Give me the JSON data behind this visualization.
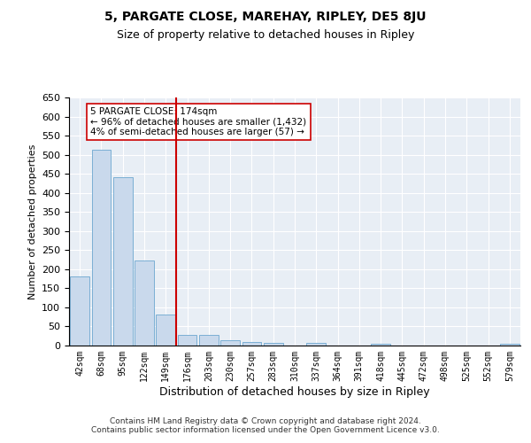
{
  "title": "5, PARGATE CLOSE, MAREHAY, RIPLEY, DE5 8JU",
  "subtitle": "Size of property relative to detached houses in Ripley",
  "xlabel": "Distribution of detached houses by size in Ripley",
  "ylabel": "Number of detached properties",
  "bar_color": "#c9d9ec",
  "bar_edge_color": "#7bafd4",
  "background_color": "#e8eef5",
  "grid_color": "#ffffff",
  "categories": [
    "42sqm",
    "68sqm",
    "95sqm",
    "122sqm",
    "149sqm",
    "176sqm",
    "203sqm",
    "230sqm",
    "257sqm",
    "283sqm",
    "310sqm",
    "337sqm",
    "364sqm",
    "391sqm",
    "418sqm",
    "445sqm",
    "472sqm",
    "498sqm",
    "525sqm",
    "552sqm",
    "579sqm"
  ],
  "values": [
    182,
    512,
    441,
    224,
    82,
    28,
    28,
    15,
    10,
    7,
    0,
    7,
    0,
    0,
    5,
    0,
    0,
    0,
    0,
    0,
    4
  ],
  "ylim": [
    0,
    650
  ],
  "yticks": [
    0,
    50,
    100,
    150,
    200,
    250,
    300,
    350,
    400,
    450,
    500,
    550,
    600,
    650
  ],
  "marker_index": 5,
  "annotation_title": "5 PARGATE CLOSE: 174sqm",
  "annotation_line1": "← 96% of detached houses are smaller (1,432)",
  "annotation_line2": "4% of semi-detached houses are larger (57) →",
  "footer": "Contains HM Land Registry data © Crown copyright and database right 2024.\nContains public sector information licensed under the Open Government Licence v3.0.",
  "red_line_color": "#cc0000",
  "annotation_box_color": "#ffffff",
  "annotation_box_edge": "#cc0000"
}
